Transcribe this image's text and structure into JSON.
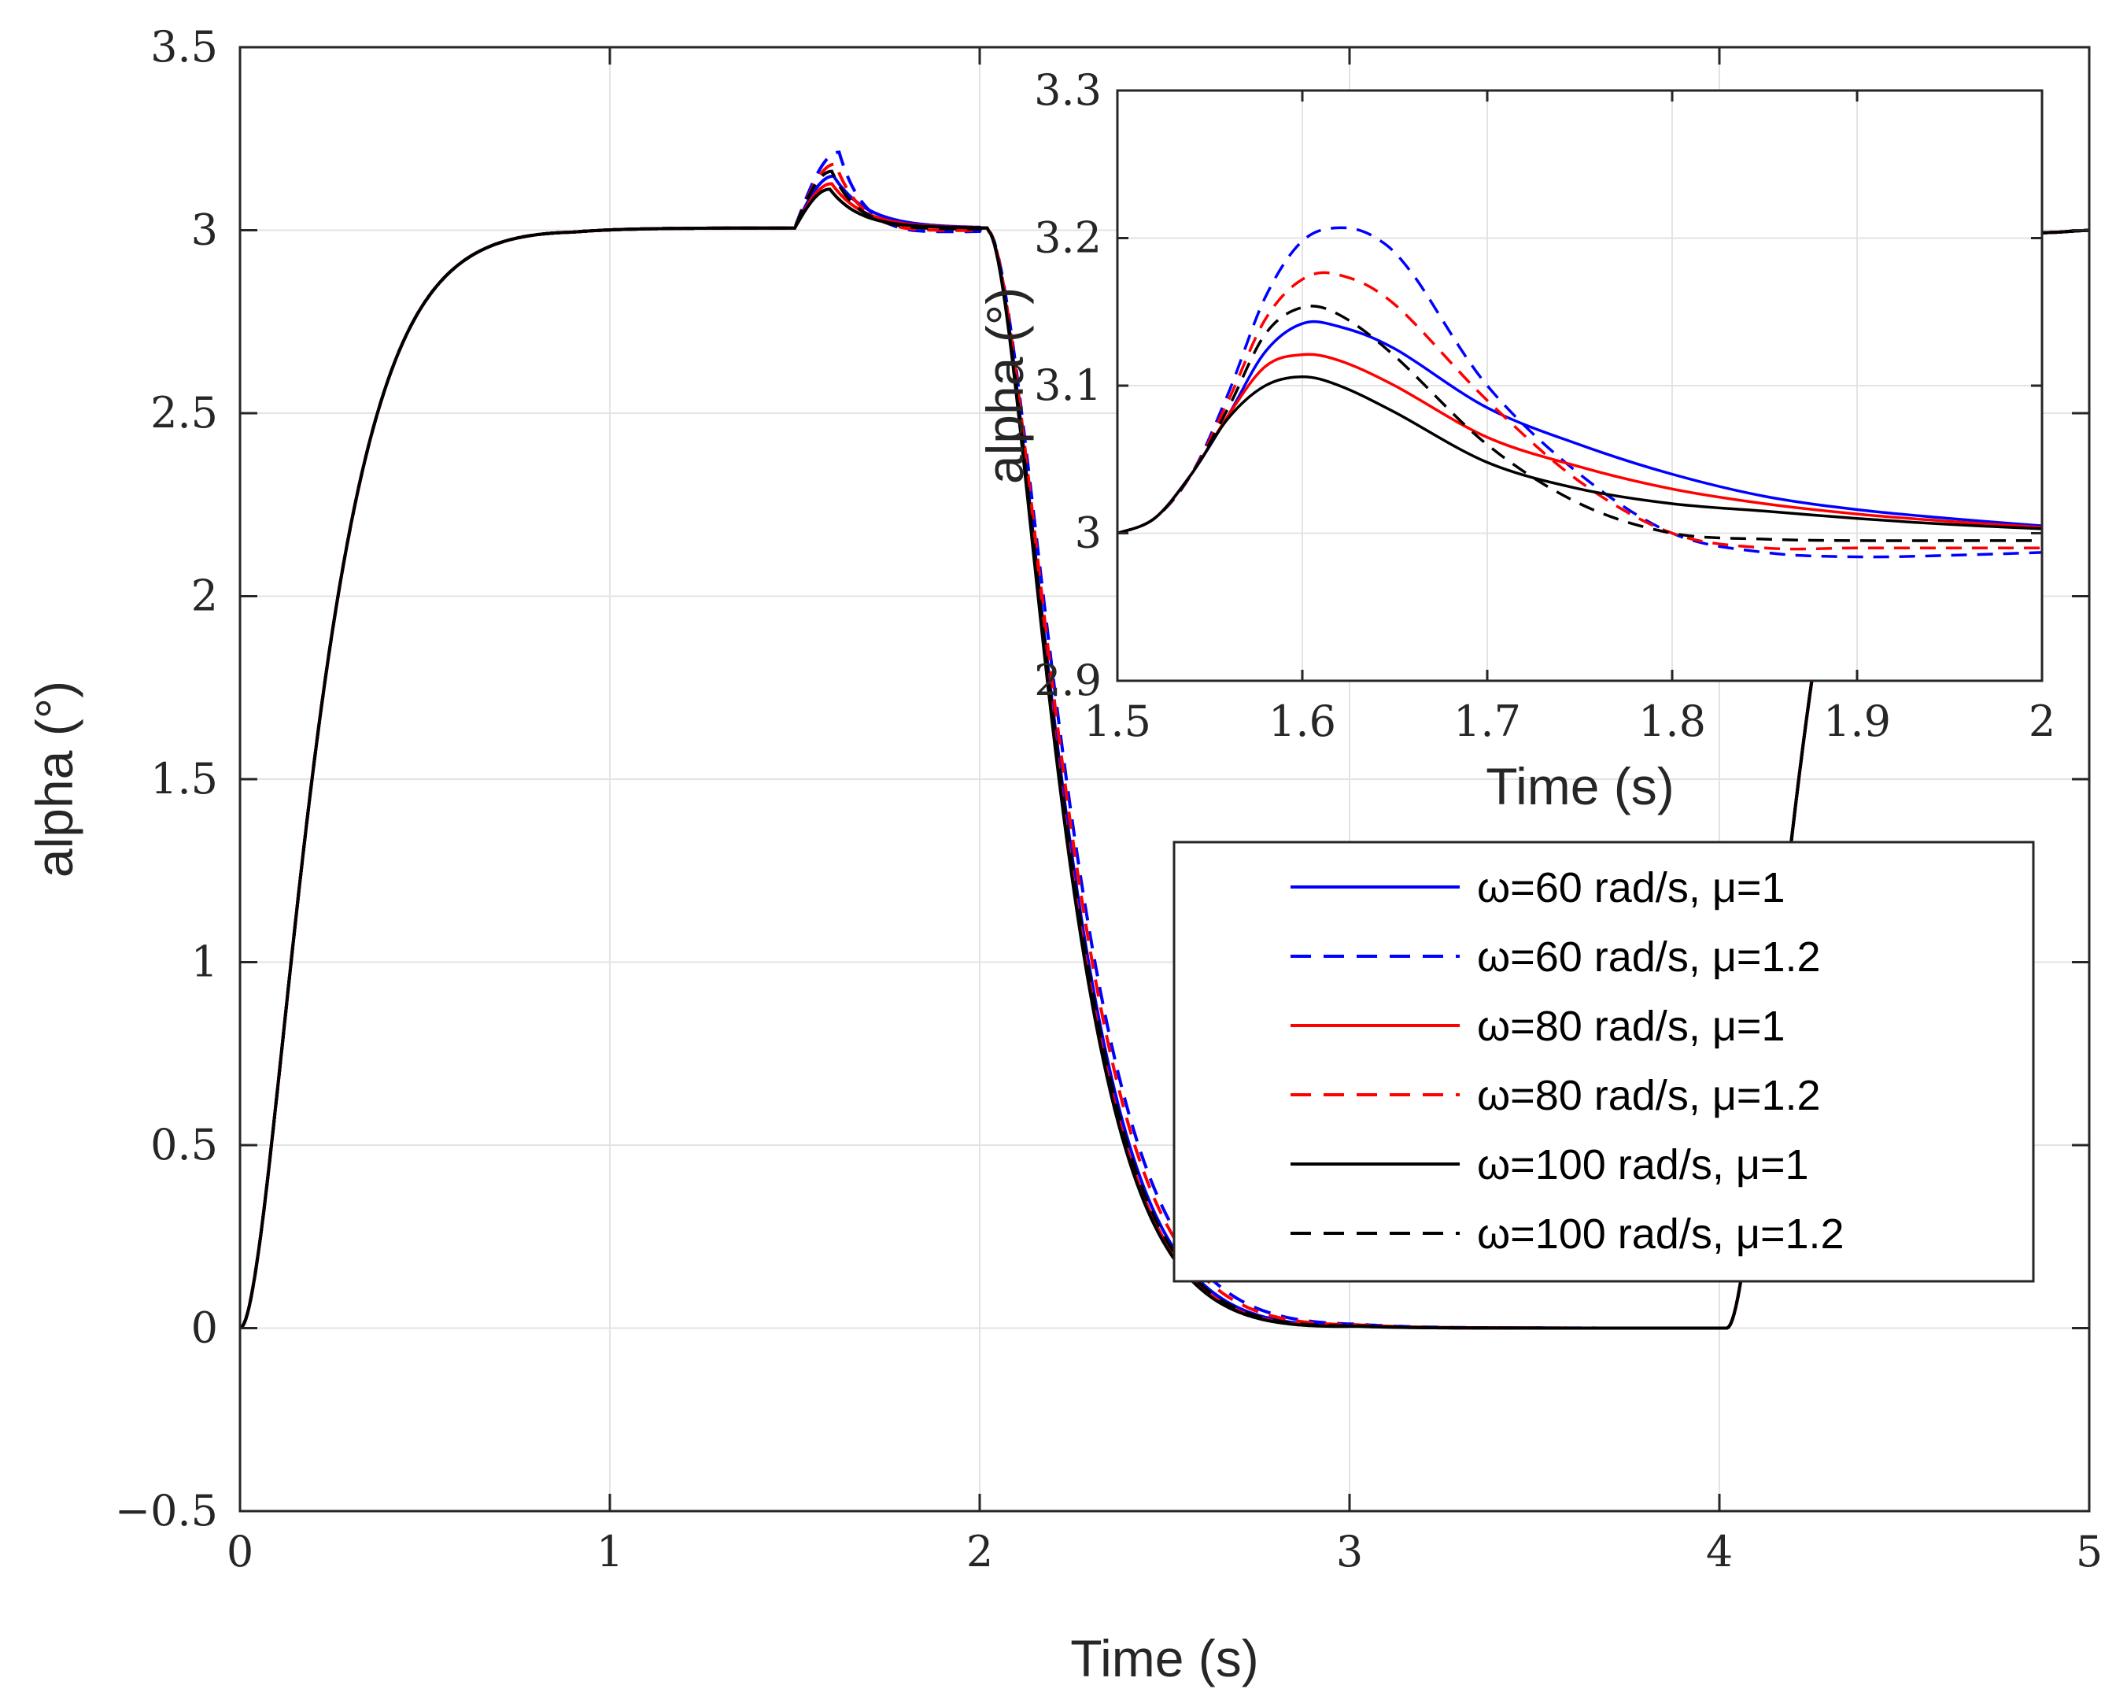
{
  "chart_data": [
    {
      "type": "line",
      "xlabel": "Time (s)",
      "ylabel": "alpha (°)",
      "xlim": [
        0,
        5
      ],
      "ylim": [
        -0.5,
        3.5
      ],
      "xticks": [
        0,
        1,
        2,
        3,
        4,
        5
      ],
      "xtick_labels": [
        "0",
        "1",
        "2",
        "3",
        "4",
        "5"
      ],
      "yticks": [
        -0.5,
        0,
        0.5,
        1,
        1.5,
        2,
        2.5,
        3,
        3.5
      ],
      "ytick_labels": [
        "−0.5",
        "0",
        "0.5",
        "1",
        "1.5",
        "2",
        "2.5",
        "3",
        "3.5"
      ],
      "grid": true,
      "legend_position": "bottom-right",
      "series": [
        {
          "name": "ω=60 rad/s, μ=1",
          "color": "#0000ff",
          "style": "solid",
          "peak": 3.142,
          "undershoot": 3.0
        },
        {
          "name": "ω=60 rad/s, μ=1.2",
          "color": "#0000ff",
          "style": "dashed",
          "peak": 3.207,
          "undershoot": 2.985
        },
        {
          "name": "ω=80 rad/s, μ=1",
          "color": "#ff0000",
          "style": "solid",
          "peak": 3.121,
          "undershoot": 3.0
        },
        {
          "name": "ω=80 rad/s, μ=1.2",
          "color": "#ff0000",
          "style": "dashed",
          "peak": 3.175,
          "undershoot": 2.99
        },
        {
          "name": "ω=100 rad/s, μ=1",
          "color": "#000000",
          "style": "solid",
          "peak": 3.106,
          "undershoot": 3.0
        },
        {
          "name": "ω=100 rad/s, μ=1.2",
          "color": "#000000",
          "style": "dashed",
          "peak": 3.155,
          "undershoot": 2.995
        }
      ]
    },
    {
      "type": "line",
      "title": "inset",
      "xlabel": "Time (s)",
      "ylabel": "alpha (°)",
      "xlim": [
        1.5,
        2
      ],
      "ylim": [
        2.9,
        3.3
      ],
      "xticks": [
        1.5,
        1.6,
        1.7,
        1.8,
        1.9,
        2
      ],
      "xtick_labels": [
        "1.5",
        "1.6",
        "1.7",
        "1.8",
        "1.9",
        "2"
      ],
      "yticks": [
        2.9,
        3,
        3.1,
        3.2,
        3.3
      ],
      "ytick_labels": [
        "2.9",
        "3",
        "3.1",
        "3.2",
        "3.3"
      ],
      "grid": true,
      "series": [
        {
          "name": "ω=60 rad/s, μ=1",
          "color": "#0000ff",
          "style": "solid",
          "x": [
            1.5,
            1.52,
            1.54,
            1.56,
            1.58,
            1.6,
            1.62,
            1.65,
            1.7,
            1.75,
            1.8,
            1.85,
            1.9,
            1.95,
            2.0
          ],
          "y": [
            3.0,
            3.01,
            3.04,
            3.08,
            3.123,
            3.142,
            3.14,
            3.125,
            3.085,
            3.06,
            3.04,
            3.025,
            3.016,
            3.01,
            3.005
          ]
        },
        {
          "name": "ω=60 rad/s, μ=1.2",
          "color": "#0000ff",
          "style": "dashed",
          "x": [
            1.5,
            1.52,
            1.54,
            1.56,
            1.58,
            1.6,
            1.62,
            1.64,
            1.66,
            1.7,
            1.75,
            1.8,
            1.85,
            1.9,
            1.95,
            2.0
          ],
          "y": [
            3.0,
            3.01,
            3.04,
            3.095,
            3.16,
            3.198,
            3.207,
            3.2,
            3.175,
            3.1,
            3.04,
            3.0,
            2.987,
            2.984,
            2.985,
            2.987
          ]
        },
        {
          "name": "ω=80 rad/s, μ=1",
          "color": "#ff0000",
          "style": "solid",
          "x": [
            1.5,
            1.52,
            1.54,
            1.56,
            1.58,
            1.6,
            1.62,
            1.65,
            1.7,
            1.75,
            1.8,
            1.85,
            1.9,
            1.95,
            2.0
          ],
          "y": [
            3.0,
            3.01,
            3.04,
            3.08,
            3.113,
            3.121,
            3.117,
            3.1,
            3.065,
            3.045,
            3.03,
            3.02,
            3.013,
            3.008,
            3.004
          ]
        },
        {
          "name": "ω=80 rad/s, μ=1.2",
          "color": "#ff0000",
          "style": "dashed",
          "x": [
            1.5,
            1.52,
            1.54,
            1.56,
            1.58,
            1.6,
            1.62,
            1.65,
            1.7,
            1.75,
            1.8,
            1.85,
            1.9,
            1.95,
            2.0
          ],
          "y": [
            3.0,
            3.01,
            3.04,
            3.09,
            3.145,
            3.172,
            3.175,
            3.155,
            3.09,
            3.035,
            3.0,
            2.99,
            2.99,
            2.99,
            2.99
          ]
        },
        {
          "name": "ω=100 rad/s, μ=1",
          "color": "#000000",
          "style": "solid",
          "x": [
            1.5,
            1.52,
            1.54,
            1.56,
            1.58,
            1.6,
            1.62,
            1.65,
            1.7,
            1.75,
            1.8,
            1.85,
            1.9,
            1.95,
            2.0
          ],
          "y": [
            3.0,
            3.01,
            3.04,
            3.078,
            3.1,
            3.106,
            3.1,
            3.082,
            3.048,
            3.03,
            3.02,
            3.015,
            3.01,
            3.006,
            3.003
          ]
        },
        {
          "name": "ω=100 rad/s, μ=1.2",
          "color": "#000000",
          "style": "dashed",
          "x": [
            1.5,
            1.52,
            1.54,
            1.56,
            1.58,
            1.6,
            1.62,
            1.65,
            1.7,
            1.75,
            1.8,
            1.85,
            1.9,
            1.95,
            2.0
          ],
          "y": [
            3.0,
            3.01,
            3.04,
            3.085,
            3.135,
            3.153,
            3.148,
            3.12,
            3.06,
            3.02,
            3.0,
            2.996,
            2.995,
            2.995,
            2.995
          ]
        }
      ]
    }
  ]
}
